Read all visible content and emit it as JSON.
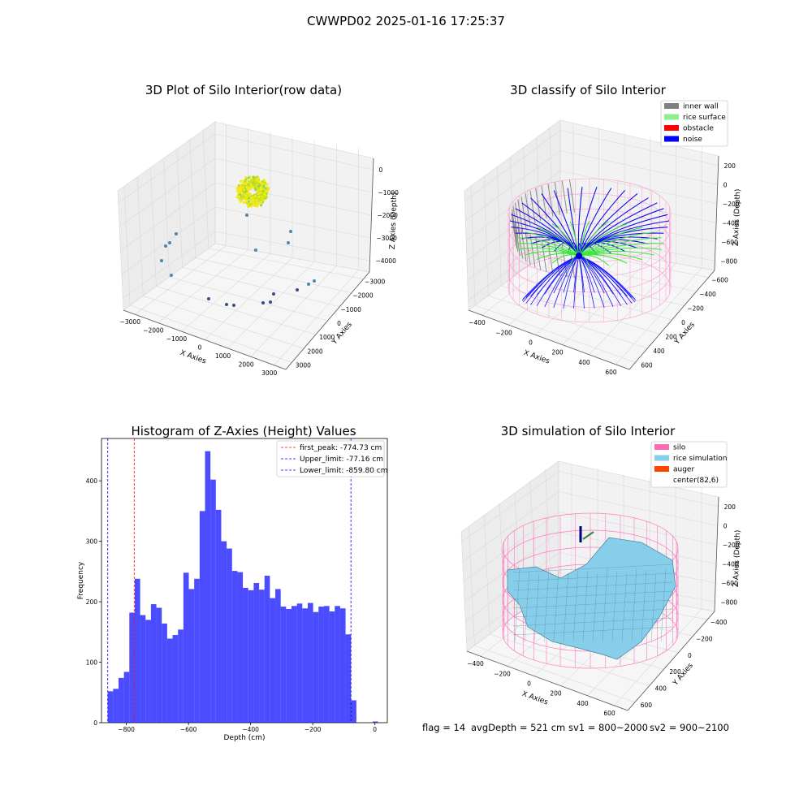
{
  "suptitle": "CWWPD02 2025-01-16 17:25:37",
  "panels": {
    "raw": {
      "title": "3D Plot of Silo Interior(row data)",
      "xlabel": "X Axies",
      "ylabel": "Y Axies",
      "zlabel": "Z Axies (Depth)",
      "xticks": [
        "−3000",
        "−2000",
        "−1000",
        "0",
        "1000",
        "2000",
        "3000"
      ],
      "yticks": [
        "3000",
        "2000",
        "1000",
        "0",
        "−1000",
        "−2000",
        "−3000"
      ],
      "zticks": [
        "0",
        "−1000",
        "−2000",
        "−3000",
        "−4000"
      ]
    },
    "classify": {
      "title": "3D classify of Silo Interior",
      "xlabel": "X Axies",
      "ylabel": "Y Axies",
      "zlabel": "Z Axies (Depth)",
      "xticks": [
        "−400",
        "−200",
        "0",
        "200",
        "400",
        "600"
      ],
      "yticks": [
        "600",
        "400",
        "200",
        "0",
        "−200",
        "−400",
        "−600"
      ],
      "zticks": [
        "200",
        "0",
        "−200",
        "−400",
        "−600",
        "−800"
      ],
      "legend": [
        {
          "label": "inner wall",
          "color": "#808080"
        },
        {
          "label": "rice surface",
          "color": "#90ee90"
        },
        {
          "label": "obstacle",
          "color": "#ff0000"
        },
        {
          "label": "noise",
          "color": "#0000ff"
        }
      ]
    },
    "simulation": {
      "title": "3D simulation of Silo Interior",
      "xlabel": "X Axies",
      "ylabel": "Y Axies",
      "zlabel": "Z Axies (Depth)",
      "xticks": [
        "−400",
        "−200",
        "0",
        "200",
        "400",
        "600"
      ],
      "yticks": [
        "600",
        "400",
        "200",
        "0",
        "−200",
        "−400"
      ],
      "zticks": [
        "200",
        "0",
        "−200",
        "−400",
        "−600",
        "−800"
      ],
      "legend": [
        {
          "label": "silo",
          "color": "#ff69b4"
        },
        {
          "label": "rice simulation",
          "color": "#87ceeb"
        },
        {
          "label": "auger",
          "color": "#ff4500"
        },
        {
          "label": "center(82,6)",
          "color": "#ffffff"
        }
      ]
    }
  },
  "footer": {
    "flag": "flag = 14",
    "avg": "avgDepth = 521 cm",
    "sv1": "sv1 = 800~2000",
    "sv2": "sv2 = 900~2100"
  },
  "chart_data": [
    {
      "type": "histogram",
      "title": "Histogram of Z-Axies (Height) Values",
      "xlabel": "Depth (cm)",
      "ylabel": "Frequency",
      "xlim": [
        -880,
        40
      ],
      "ylim": [
        0,
        470
      ],
      "xticks": [
        -800,
        -600,
        -400,
        -200,
        0
      ],
      "yticks": [
        0,
        100,
        200,
        300,
        400
      ],
      "tick_labels_x": [
        "−800",
        "−600",
        "−400",
        "−200",
        "0"
      ],
      "tick_labels_y": [
        "0",
        "100",
        "200",
        "300",
        "400"
      ],
      "color": "#0000ff",
      "bin_start": -860,
      "bin_width": 17.4,
      "counts": [
        52,
        56,
        74,
        84,
        182,
        238,
        178,
        170,
        196,
        190,
        164,
        139,
        145,
        154,
        248,
        221,
        238,
        350,
        449,
        402,
        352,
        300,
        288,
        251,
        249,
        223,
        219,
        231,
        220,
        243,
        206,
        221,
        192,
        188,
        193,
        197,
        189,
        198,
        183,
        192,
        193,
        184,
        193,
        189,
        146,
        37,
        0,
        0,
        0,
        2,
        0
      ],
      "lines": [
        {
          "label": "first_peak: -774.73 cm",
          "x": -774.73,
          "color": "#ff0000"
        },
        {
          "label": "Upper_limit: -77.16 cm",
          "x": -77.16,
          "color": "#0000ff"
        },
        {
          "label": "Lower_limit: -859.80 cm",
          "x": -859.8,
          "color": "#0000ff"
        }
      ]
    }
  ]
}
